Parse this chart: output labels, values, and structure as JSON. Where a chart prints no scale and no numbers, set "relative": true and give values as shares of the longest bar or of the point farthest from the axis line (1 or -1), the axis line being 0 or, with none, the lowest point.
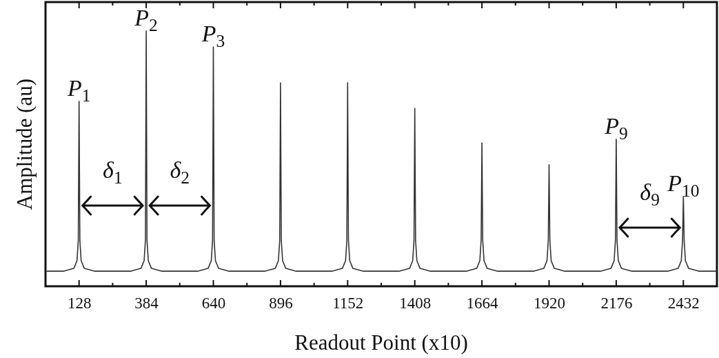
{
  "chart_data": {
    "type": "line",
    "relative": true,
    "xlabel": "Readout Point (x10)",
    "ylabel": "Amplitude (au)",
    "xlim": [
      0,
      2560
    ],
    "xticks": [
      128,
      {
        "value": 256,
        "label": null
      },
      384,
      {
        "value": 512,
        "label": null
      },
      640,
      {
        "value": 768,
        "label": null
      },
      896,
      {
        "value": 1024,
        "label": null
      },
      1152,
      {
        "value": 1280,
        "label": null
      },
      1408,
      {
        "value": 1536,
        "label": null
      },
      1664,
      {
        "value": 1792,
        "label": null
      },
      1920,
      {
        "value": 2048,
        "label": null
      },
      2176,
      {
        "value": 2304,
        "label": null
      },
      2432
    ],
    "tick_labels": "x",
    "grid": false,
    "marker": "none",
    "line_style": "solid",
    "series": [
      {
        "color": "#333333",
        "x": [
          0,
          68,
          108,
          120,
          125,
          128,
          131,
          136,
          148,
          188,
          324,
          364,
          376,
          381,
          384,
          387,
          392,
          404,
          444,
          580,
          620,
          632,
          637,
          640,
          643,
          648,
          660,
          700,
          836,
          876,
          888,
          893,
          896,
          899,
          904,
          916,
          956,
          1092,
          1132,
          1144,
          1149,
          1152,
          1155,
          1160,
          1172,
          1212,
          1348,
          1388,
          1400,
          1405,
          1408,
          1411,
          1416,
          1428,
          1468,
          1604,
          1644,
          1656,
          1661,
          1664,
          1667,
          1672,
          1684,
          1724,
          1860,
          1900,
          1912,
          1917,
          1920,
          1923,
          1928,
          1940,
          1980,
          2116,
          2156,
          2168,
          2173,
          2176,
          2179,
          2184,
          2196,
          2236,
          2372,
          2412,
          2424,
          2429,
          2432,
          2435,
          2440,
          2452,
          2492,
          2560
        ],
        "values": [
          0.059,
          0.059,
          0.07,
          0.1,
          0.18,
          0.724,
          0.18,
          0.1,
          0.07,
          0.059,
          0.059,
          0.07,
          0.1,
          0.18,
          1.0,
          0.18,
          0.1,
          0.07,
          0.059,
          0.059,
          0.07,
          0.1,
          0.18,
          0.938,
          0.18,
          0.1,
          0.07,
          0.059,
          0.059,
          0.07,
          0.1,
          0.18,
          0.797,
          0.18,
          0.1,
          0.07,
          0.059,
          0.059,
          0.07,
          0.1,
          0.18,
          0.797,
          0.18,
          0.1,
          0.07,
          0.059,
          0.059,
          0.07,
          0.1,
          0.18,
          0.697,
          0.18,
          0.1,
          0.07,
          0.059,
          0.059,
          0.07,
          0.1,
          0.18,
          0.562,
          0.18,
          0.1,
          0.07,
          0.059,
          0.059,
          0.07,
          0.1,
          0.18,
          0.476,
          0.18,
          0.1,
          0.07,
          0.059,
          0.059,
          0.07,
          0.1,
          0.18,
          0.576,
          0.18,
          0.1,
          0.07,
          0.059,
          0.059,
          0.07,
          0.1,
          0.18,
          0.351,
          0.18,
          0.1,
          0.07,
          0.059,
          0.059
        ]
      }
    ],
    "annotations": [
      {
        "text": "P$_{1}$",
        "x": 128,
        "y": 0.724
      },
      {
        "text": "P$_{2}$",
        "x": 384,
        "y": 1.0
      },
      {
        "text": "P$_{3}$",
        "x": 640,
        "y": 0.938
      },
      {
        "text": "P$_{9}$",
        "x": 2176,
        "y": 0.576
      },
      {
        "text": "P$_{10}$",
        "x": 2432,
        "y": 0.351
      },
      "δ$_{1}$",
      "δ$_{2}$",
      "δ$_{9}$"
    ]
  }
}
